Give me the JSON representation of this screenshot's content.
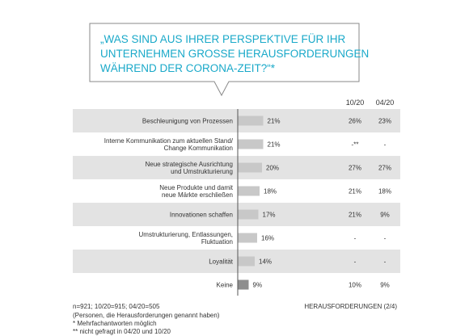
{
  "colors": {
    "accent": "#1aa9c9",
    "row_band": "#e3e3e3",
    "bar": "#c8c8c8",
    "bar_special": "#8e8e8e",
    "text": "#333333",
    "axis": "#555555"
  },
  "question": {
    "line1": "„WAS SIND AUS IHRER PERSPEKTIVE FÜR IHR",
    "line2": "UNTERNEHMEN GROSSE HERAUSFORDERUNGEN",
    "line3": "WÄHREND DER CORONA-ZEIT?“*"
  },
  "chart_data": {
    "type": "bar",
    "orientation": "horizontal",
    "categories": [
      [
        "Beschleunigung  von Prozessen"
      ],
      [
        "Interne Kommunikation zum aktuellen Stand/",
        "Change Kommunikation"
      ],
      [
        "Neue strategische Ausrichtung",
        "und Umstrukturierung"
      ],
      [
        "Neue Produkte und damit",
        "neue Märkte erschließen"
      ],
      [
        "Innovationen schaffen"
      ],
      [
        "Umstrukturierung, Entlassungen,",
        "Fluktuation"
      ],
      [
        "Loyalität"
      ],
      [
        "Keine"
      ]
    ],
    "values": [
      21,
      21,
      20,
      18,
      17,
      16,
      14,
      9
    ],
    "value_labels": [
      "21%",
      "21%",
      "20%",
      "18%",
      "17%",
      "16%",
      "14%",
      "9%"
    ],
    "xlim": [
      0,
      100
    ],
    "highlight_index": 7,
    "comparison_headers": [
      "10/20",
      "04/20"
    ],
    "comparison": [
      [
        "26%",
        "23%"
      ],
      [
        "-**",
        "-"
      ],
      [
        "27%",
        "27%"
      ],
      [
        "21%",
        "18%"
      ],
      [
        "21%",
        "9%"
      ],
      [
        "-",
        "-"
      ],
      [
        "-",
        "-"
      ],
      [
        "10%",
        "9%"
      ]
    ]
  },
  "footer": {
    "sample": "n=921;  10/20=915;  04/20=505",
    "note1": "(Personen, die Herausforderungen genannt haben)",
    "note2": "* Mehrfachantworten  möglich",
    "note3": "** nicht gefragt in 04/20  und 10/20",
    "section_label": "HERAUSFORDERUNGEN  (2/4)"
  }
}
